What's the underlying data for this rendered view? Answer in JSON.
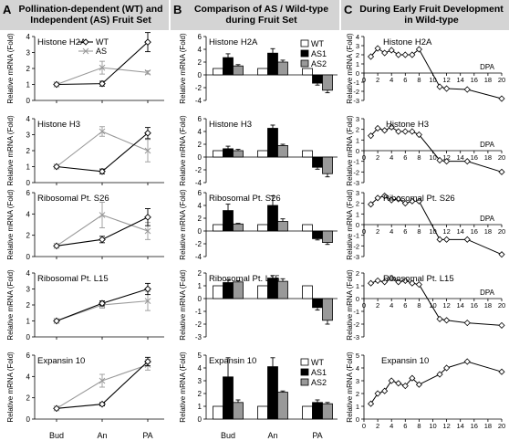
{
  "panel_headers": [
    {
      "letter": "A",
      "title": "Pollination-dependent (WT) and Independent (AS) Fruit Set"
    },
    {
      "letter": "B",
      "title": "Comparison of AS / Wild-type during Fruit Set"
    },
    {
      "letter": "C",
      "title": "During Early Fruit Development in Wild-type"
    }
  ],
  "chart_data": [
    {
      "panel": "A",
      "type": "line",
      "ylabel": "Relative mRNA (Fold)",
      "categories": [
        "Bud",
        "An",
        "PA"
      ],
      "legend": [
        "WT",
        "AS"
      ],
      "charts": [
        {
          "title": "Histone H2A",
          "ylim": [
            0,
            4
          ],
          "yticks": [
            0,
            1,
            2,
            3,
            4
          ],
          "series": [
            {
              "name": "WT",
              "values": [
                1,
                1.05,
                3.65
              ],
              "err": [
                0,
                0.15,
                0.6
              ]
            },
            {
              "name": "AS",
              "values": [
                1,
                2.05,
                1.75
              ],
              "err": [
                0,
                0.4,
                0.1
              ]
            }
          ]
        },
        {
          "title": "Histone H3",
          "ylim": [
            0,
            4
          ],
          "yticks": [
            0,
            1,
            2,
            3,
            4
          ],
          "series": [
            {
              "name": "WT",
              "values": [
                1,
                0.7,
                3.1
              ],
              "err": [
                0,
                0.15,
                0.35
              ]
            },
            {
              "name": "AS",
              "values": [
                1,
                3.2,
                2.0
              ],
              "err": [
                0,
                0.3,
                0.7
              ]
            }
          ]
        },
        {
          "title": "Ribosomal Pt. S26",
          "ylim": [
            0,
            6
          ],
          "yticks": [
            0,
            2,
            4,
            6
          ],
          "series": [
            {
              "name": "WT",
              "values": [
                1,
                1.6,
                3.7
              ],
              "err": [
                0,
                0.3,
                0.8
              ]
            },
            {
              "name": "AS",
              "values": [
                1,
                3.9,
                2.4
              ],
              "err": [
                0,
                1.2,
                0.8
              ]
            }
          ]
        },
        {
          "title": "Ribosomal Pt. L15",
          "ylim": [
            0,
            4
          ],
          "yticks": [
            0,
            1,
            2,
            3,
            4
          ],
          "series": [
            {
              "name": "WT",
              "values": [
                1,
                2.1,
                3.0
              ],
              "err": [
                0,
                0.15,
                0.35
              ]
            },
            {
              "name": "AS",
              "values": [
                1,
                2.0,
                2.25
              ],
              "err": [
                0,
                0.2,
                0.6
              ]
            }
          ]
        },
        {
          "title": "Expansin 10",
          "ylim": [
            0,
            6
          ],
          "yticks": [
            0,
            2,
            4,
            6
          ],
          "series": [
            {
              "name": "WT",
              "values": [
                1,
                1.4,
                5.4
              ],
              "err": [
                0,
                0.15,
                0.4
              ]
            },
            {
              "name": "AS",
              "values": [
                1,
                3.6,
                5.1
              ],
              "err": [
                0,
                0.6,
                0.5
              ]
            }
          ]
        }
      ]
    },
    {
      "panel": "B",
      "type": "bar",
      "ylabel": "Relative mRNA (Fold)",
      "categories": [
        "Bud",
        "An",
        "PA"
      ],
      "legend": [
        "WT",
        "AS1",
        "AS2"
      ],
      "charts": [
        {
          "title": "Histone H2A",
          "ylim": [
            -4,
            6
          ],
          "yticks": [
            -4,
            -2,
            0,
            2,
            4,
            6
          ],
          "series": [
            {
              "name": "WT",
              "values": [
                1,
                1,
                1
              ],
              "err": [
                0,
                0,
                0
              ]
            },
            {
              "name": "AS1",
              "values": [
                2.7,
                3.4,
                -1.3
              ],
              "err": [
                0.6,
                0.7,
                0.3
              ]
            },
            {
              "name": "AS2",
              "values": [
                1.4,
                2.0,
                -2.4
              ],
              "err": [
                0.2,
                0.3,
                0.4
              ]
            }
          ]
        },
        {
          "title": "Histone H3",
          "ylim": [
            -4,
            6
          ],
          "yticks": [
            -4,
            -2,
            0,
            2,
            4,
            6
          ],
          "series": [
            {
              "name": "WT",
              "values": [
                1,
                1,
                1
              ],
              "err": [
                0,
                0,
                0
              ]
            },
            {
              "name": "AS1",
              "values": [
                1.3,
                4.5,
                -1.6
              ],
              "err": [
                0.4,
                0.5,
                0.3
              ]
            },
            {
              "name": "AS2",
              "values": [
                1.0,
                1.8,
                -2.6
              ],
              "err": [
                0.2,
                0.2,
                0.5
              ]
            }
          ]
        },
        {
          "title": "Ribosomal Pt. S26",
          "ylim": [
            -4,
            6
          ],
          "yticks": [
            -4,
            -2,
            0,
            2,
            4,
            6
          ],
          "series": [
            {
              "name": "WT",
              "values": [
                1,
                1,
                1
              ],
              "err": [
                0,
                0,
                0
              ]
            },
            {
              "name": "AS1",
              "values": [
                3.2,
                4.0,
                -1.2
              ],
              "err": [
                1.0,
                1.5,
                0.2
              ]
            },
            {
              "name": "AS2",
              "values": [
                1.1,
                1.5,
                -1.8
              ],
              "err": [
                0.1,
                0.4,
                0.3
              ]
            }
          ]
        },
        {
          "title": "Ribosomal Pt. L15",
          "ylim": [
            -3,
            2
          ],
          "yticks": [
            -3,
            -2,
            -1,
            0,
            1,
            2
          ],
          "series": [
            {
              "name": "WT",
              "values": [
                1,
                1,
                1
              ],
              "err": [
                0,
                0,
                0
              ]
            },
            {
              "name": "AS1",
              "values": [
                1.25,
                1.6,
                -0.7
              ],
              "err": [
                0.2,
                0.2,
                0.2
              ]
            },
            {
              "name": "AS2",
              "values": [
                1.3,
                1.35,
                -1.7
              ],
              "err": [
                0.1,
                0.2,
                0.3
              ]
            }
          ]
        },
        {
          "title": "Expansin 10",
          "ylim": [
            0,
            5
          ],
          "yticks": [
            0,
            1,
            2,
            3,
            4,
            5
          ],
          "series": [
            {
              "name": "WT",
              "values": [
                1,
                1,
                1
              ],
              "err": [
                0,
                0,
                0
              ]
            },
            {
              "name": "AS1",
              "values": [
                3.3,
                4.1,
                1.3
              ],
              "err": [
                1.5,
                0.7,
                0.2
              ]
            },
            {
              "name": "AS2",
              "values": [
                1.3,
                2.1,
                1.2
              ],
              "err": [
                0.2,
                0.1,
                0.1
              ]
            }
          ]
        }
      ]
    },
    {
      "panel": "C",
      "type": "line",
      "ylabel": "Relative mRNA (Fold)",
      "x": [
        1,
        2,
        3,
        4,
        5,
        6,
        7,
        8,
        11,
        12,
        15,
        20
      ],
      "xticks": [
        0,
        2,
        4,
        6,
        8,
        10,
        12,
        14,
        16,
        18,
        20
      ],
      "xlabel_tag": "DPA",
      "charts": [
        {
          "title": "Histone H2A",
          "ylim": [
            -3,
            4
          ],
          "yticks": [
            -3,
            -2,
            -1,
            0,
            1,
            2,
            3,
            4
          ],
          "show_xaxis": true,
          "values": [
            1.8,
            2.7,
            2.2,
            2.5,
            2.0,
            2.0,
            2.0,
            2.6,
            -1.5,
            -1.7,
            -1.8,
            -2.8
          ]
        },
        {
          "title": "Histone H3",
          "ylim": [
            -3,
            3
          ],
          "yticks": [
            -3,
            -2,
            -1,
            0,
            1,
            2,
            3
          ],
          "show_xaxis": true,
          "values": [
            1.4,
            2.1,
            1.9,
            2.2,
            1.8,
            1.8,
            1.8,
            1.5,
            -0.9,
            -1.0,
            -1.0,
            -2.0
          ]
        },
        {
          "title": "Ribosomal Pt. S26",
          "ylim": [
            -3,
            3
          ],
          "yticks": [
            -3,
            -2,
            -1,
            0,
            1,
            2,
            3
          ],
          "show_xaxis": true,
          "values": [
            1.9,
            2.5,
            2.7,
            2.3,
            2.4,
            2.0,
            2.2,
            2.2,
            -1.4,
            -1.4,
            -1.4,
            -2.8
          ]
        },
        {
          "title": "Ribosomal Pt. L15",
          "ylim": [
            -3,
            2
          ],
          "yticks": [
            -3,
            -2,
            -1,
            0,
            1,
            2
          ],
          "show_xaxis": true,
          "values": [
            1.2,
            1.4,
            1.3,
            1.6,
            1.3,
            1.4,
            1.2,
            1.1,
            -1.6,
            -1.7,
            -1.9,
            -2.1
          ]
        },
        {
          "title": "Expansin 10",
          "ylim": [
            0,
            5
          ],
          "yticks": [
            0,
            1,
            2,
            3,
            4,
            5
          ],
          "show_xaxis": false,
          "values": [
            1.2,
            2.0,
            2.2,
            3.0,
            2.8,
            2.6,
            3.2,
            2.7,
            3.5,
            4.0,
            4.5,
            3.7
          ]
        }
      ]
    }
  ]
}
